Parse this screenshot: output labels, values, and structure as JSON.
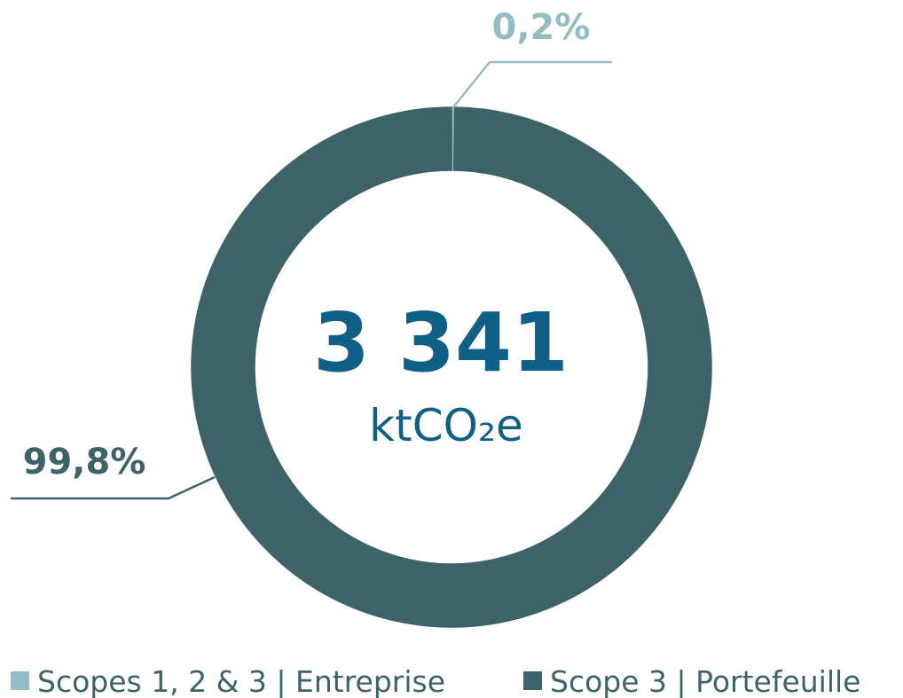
{
  "chart_data": {
    "type": "donut",
    "categories": [
      "Scopes 1, 2 & 3 | Entreprise",
      "Scope 3 | Portefeuille"
    ],
    "values": [
      0.2,
      99.8
    ],
    "value_labels": [
      "0,2%",
      "99,8%"
    ],
    "colors": [
      "#93bcc3",
      "#3d6369"
    ],
    "center_value": "3 341",
    "center_unit": "ktCO₂e",
    "center_color": "#0f5f87",
    "legend": "bottom"
  }
}
